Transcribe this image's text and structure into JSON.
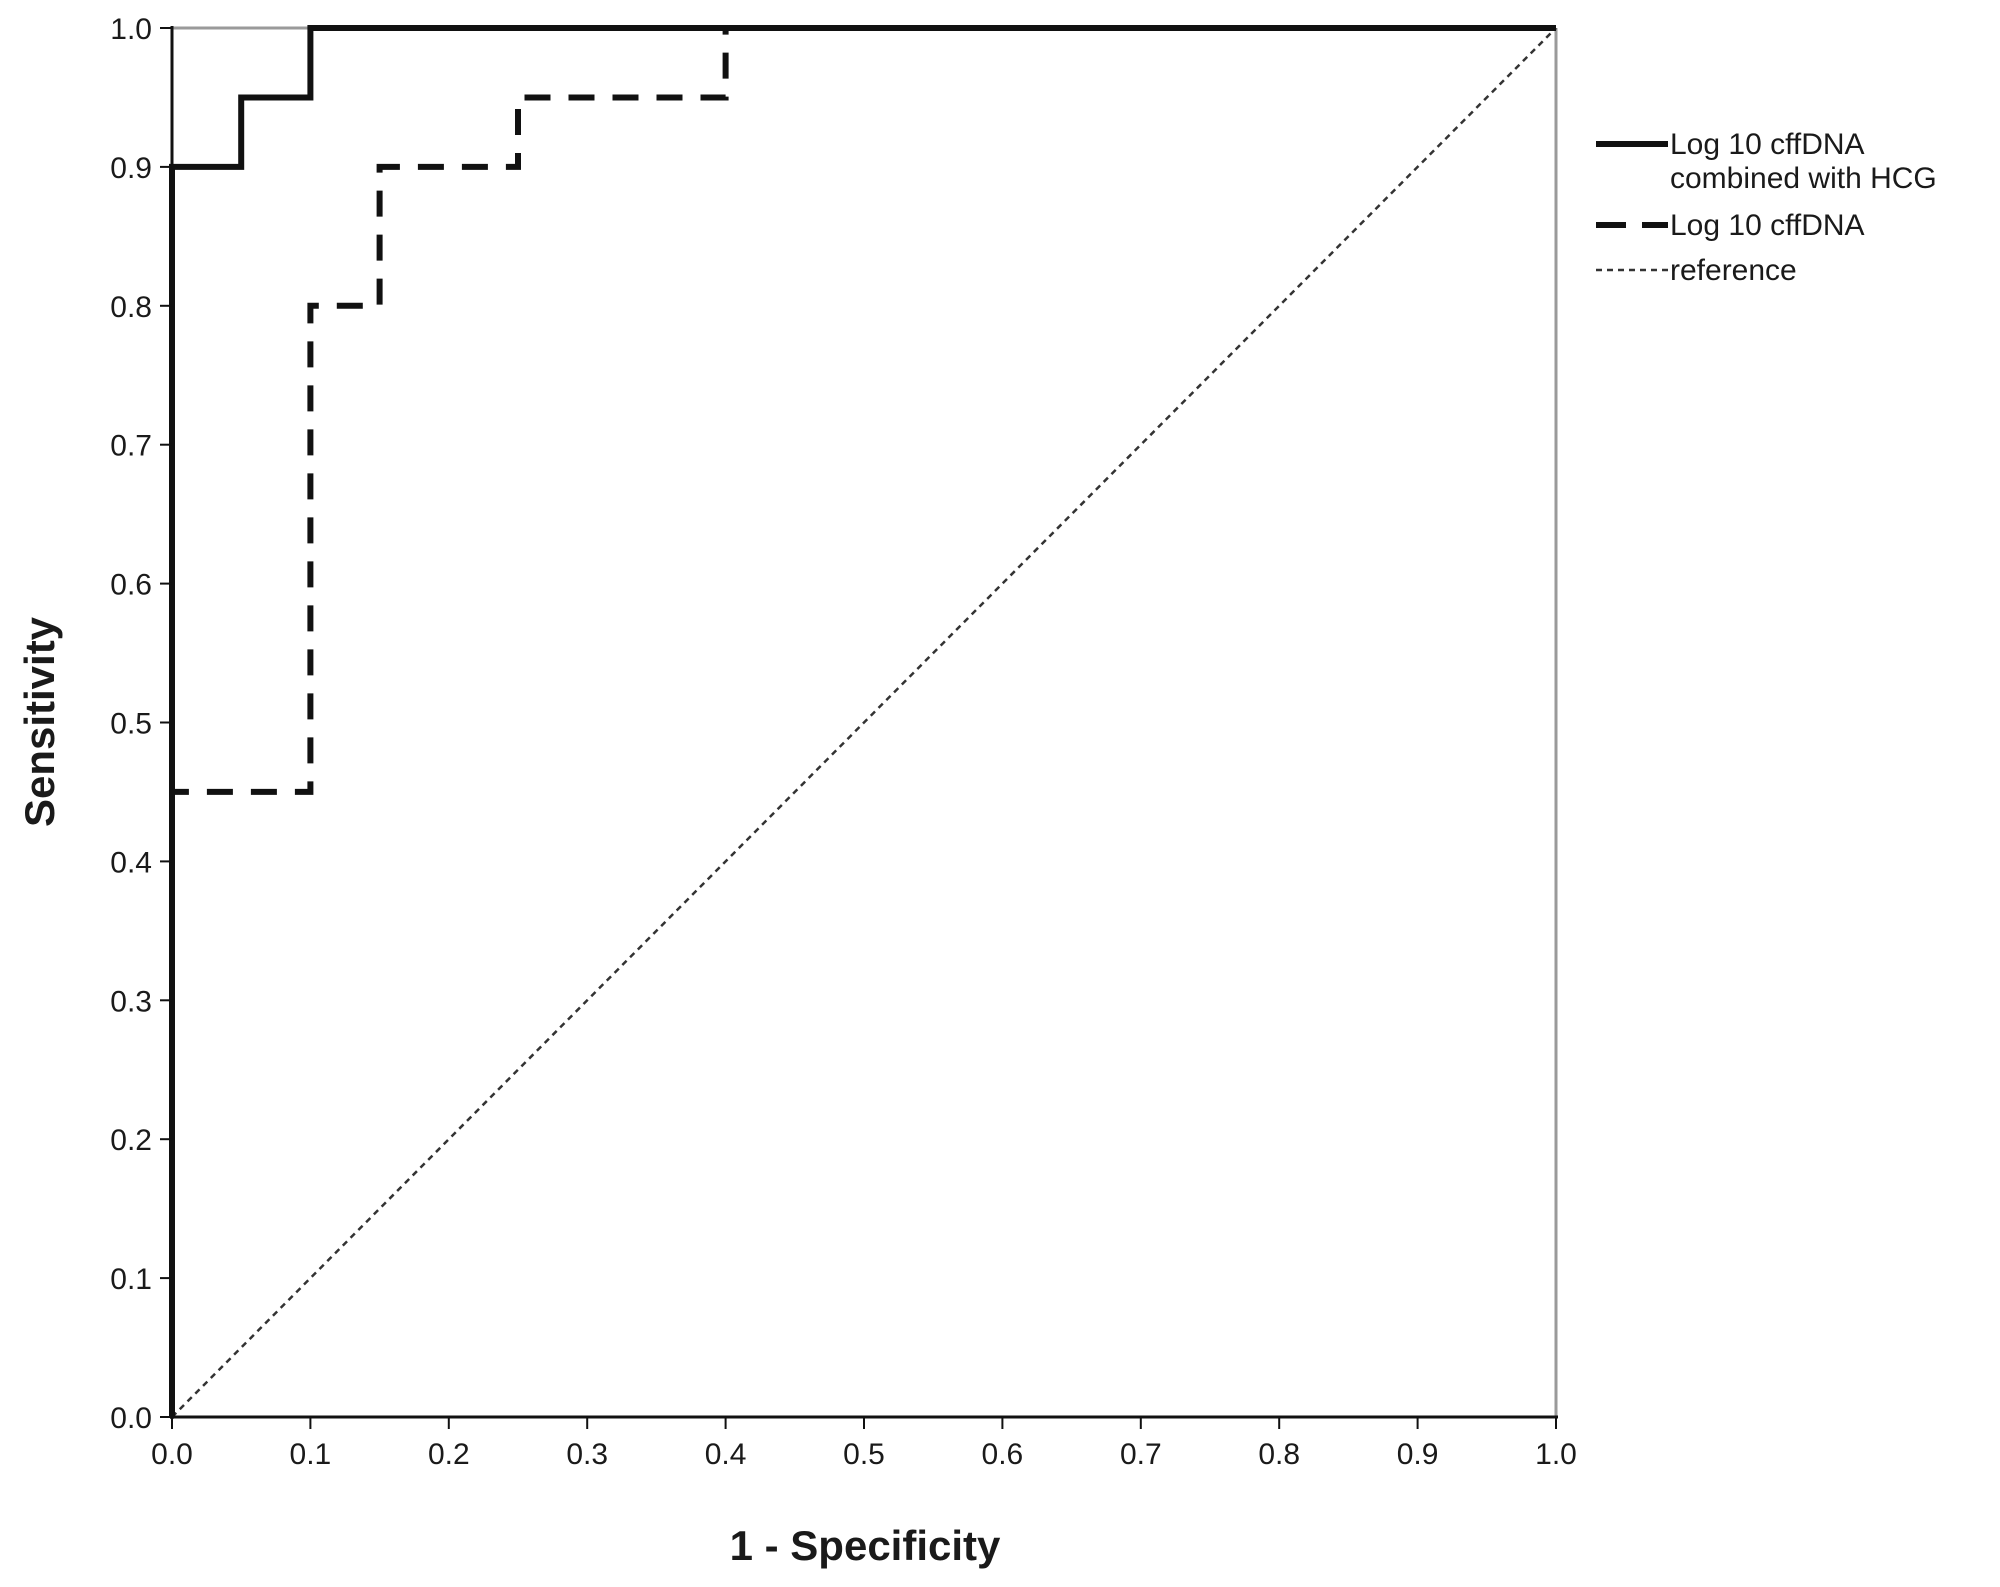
{
  "chart_data": {
    "type": "line",
    "title": "",
    "xlabel": "1 - Specificity",
    "ylabel": "Sensitivity",
    "xlim": [
      0,
      1
    ],
    "ylim": [
      0,
      1
    ],
    "xticks": [
      "0.0",
      "0.1",
      "0.2",
      "0.3",
      "0.4",
      "0.5",
      "0.6",
      "0.7",
      "0.8",
      "0.9",
      "1.0"
    ],
    "yticks": [
      "0.0",
      "0.1",
      "0.2",
      "0.3",
      "0.4",
      "0.5",
      "0.6",
      "0.7",
      "0.8",
      "0.9",
      "1.0"
    ],
    "grid": false,
    "legend_position": "right",
    "legend": [
      {
        "label_lines": [
          "Log 10 cffDNA",
          "combined with HCG"
        ]
      },
      {
        "label_lines": [
          "Log 10 cffDNA"
        ]
      },
      {
        "label_lines": [
          "reference"
        ]
      }
    ],
    "series": [
      {
        "name": "Log 10 cffDNA combined with HCG",
        "line_style": "solid",
        "color": "#111111",
        "x": [
          0.0,
          0.0,
          0.05,
          0.05,
          0.1,
          0.1,
          1.0
        ],
        "y": [
          0.0,
          0.9,
          0.9,
          0.95,
          0.95,
          1.0,
          1.0
        ]
      },
      {
        "name": "Log 10 cffDNA",
        "line_style": "dashed",
        "color": "#111111",
        "x": [
          0.0,
          0.0,
          0.1,
          0.1,
          0.15,
          0.15,
          0.25,
          0.25,
          0.4,
          0.4,
          1.0
        ],
        "y": [
          0.0,
          0.45,
          0.45,
          0.8,
          0.8,
          0.9,
          0.9,
          0.95,
          0.95,
          1.0,
          1.0
        ]
      },
      {
        "name": "reference",
        "line_style": "dotted",
        "color": "#333333",
        "x": [
          0.0,
          1.0
        ],
        "y": [
          0.0,
          1.0
        ]
      }
    ]
  }
}
